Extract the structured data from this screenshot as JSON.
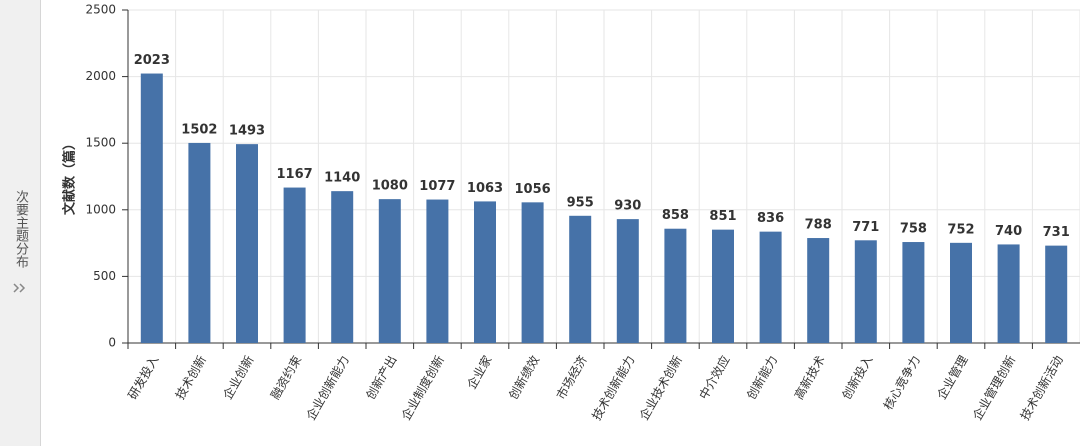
{
  "sidebar": {
    "label": "次要主题分布"
  },
  "chart_data": {
    "type": "bar",
    "y_label": "文献数（篇）",
    "categories": [
      "研发投入",
      "技术创新",
      "企业创新",
      "融资约束",
      "企业创新能力",
      "创新产出",
      "企业制度创新",
      "企业家",
      "创新绩效",
      "市场经济",
      "技术创新能力",
      "企业技术创新",
      "中介效应",
      "创新能力",
      "高新技术",
      "创新投入",
      "核心竞争力",
      "企业管理",
      "企业管理创新",
      "技术创新活动"
    ],
    "values": [
      2023,
      1502,
      1493,
      1167,
      1140,
      1080,
      1077,
      1063,
      1056,
      955,
      930,
      858,
      851,
      836,
      788,
      771,
      758,
      752,
      740,
      731
    ],
    "color": "#4672a8",
    "ylim": [
      0,
      2500
    ],
    "yticks": [
      0,
      500,
      1000,
      1500,
      2000,
      2500
    ],
    "grid": true
  }
}
